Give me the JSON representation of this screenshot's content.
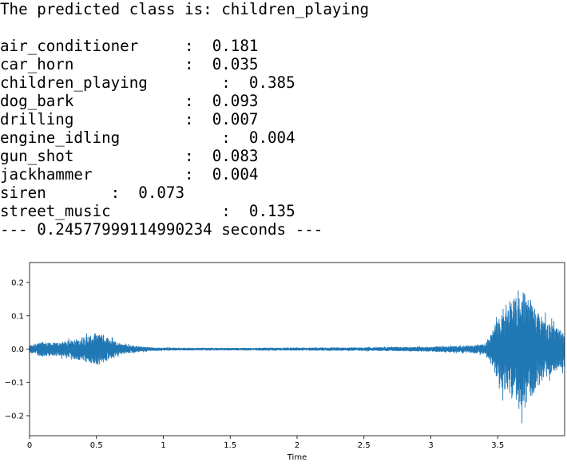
{
  "output": {
    "prediction_line": "The predicted class is: children_playing",
    "scores": [
      {
        "label": "air_conditioner",
        "sep": "\t\t:",
        "value": "0.181"
      },
      {
        "label": "car_horn",
        "sep": "\t\t\t:",
        "value": "0.035"
      },
      {
        "label": "children_playing",
        "sep": "\t\t:",
        "value": "0.385"
      },
      {
        "label": "dog_bark",
        "sep": "\t\t\t:",
        "value": "0.093"
      },
      {
        "label": "drilling",
        "sep": "\t\t\t:",
        "value": "0.007"
      },
      {
        "label": "engine_idling",
        "sep": "\t\t\t:",
        "value": "0.004"
      },
      {
        "label": "gun_shot",
        "sep": "\t\t\t:",
        "value": "0.083"
      },
      {
        "label": "jackhammer",
        "sep": "\t\t\t:",
        "value": "0.004"
      },
      {
        "label": "siren",
        "sep": "\t\t:",
        "value": "0.073"
      },
      {
        "label": "street_music",
        "sep": "\t\t\t:",
        "value": "0.135"
      }
    ],
    "timing_line": "--- 0.24577999114990234 seconds ---"
  },
  "chart_data": {
    "type": "line",
    "title": "",
    "xlabel": "Time",
    "ylabel": "",
    "xlim": [
      0,
      4.0
    ],
    "ylim": [
      -0.26,
      0.26
    ],
    "xticks": [
      0,
      0.5,
      1,
      1.5,
      2,
      2.5,
      3,
      3.5
    ],
    "xtick_labels": [
      "0",
      "0.5",
      "1",
      "1.5",
      "2",
      "2.5",
      "3",
      "3.5"
    ],
    "yticks": [
      -0.2,
      -0.1,
      0.0,
      0.1,
      0.2
    ],
    "ytick_labels": [
      "−0.2",
      "−0.1",
      "0.0",
      "0.1",
      "0.2"
    ],
    "grid": false,
    "series": [
      {
        "color": "#1f77b4",
        "envelope": {
          "t": [
            0.0,
            0.1,
            0.2,
            0.3,
            0.4,
            0.45,
            0.5,
            0.55,
            0.6,
            0.7,
            0.8,
            0.9,
            1.0,
            1.5,
            2.0,
            2.5,
            3.0,
            3.3,
            3.4,
            3.45,
            3.5,
            3.55,
            3.6,
            3.65,
            3.7,
            3.75,
            3.8,
            3.85,
            3.9,
            3.95,
            4.0
          ],
          "upper": [
            0.015,
            0.03,
            0.025,
            0.035,
            0.05,
            0.055,
            0.065,
            0.06,
            0.04,
            0.02,
            0.012,
            0.008,
            0.006,
            0.005,
            0.006,
            0.007,
            0.01,
            0.015,
            0.02,
            0.06,
            0.13,
            0.17,
            0.2,
            0.22,
            0.23,
            0.2,
            0.15,
            0.12,
            0.1,
            0.08,
            0.07
          ],
          "lower": [
            -0.015,
            -0.03,
            -0.025,
            -0.035,
            -0.05,
            -0.055,
            -0.065,
            -0.06,
            -0.04,
            -0.02,
            -0.012,
            -0.008,
            -0.006,
            -0.005,
            -0.006,
            -0.007,
            -0.01,
            -0.015,
            -0.02,
            -0.06,
            -0.13,
            -0.17,
            -0.2,
            -0.22,
            -0.24,
            -0.2,
            -0.15,
            -0.12,
            -0.1,
            -0.08,
            -0.07
          ]
        }
      }
    ]
  }
}
